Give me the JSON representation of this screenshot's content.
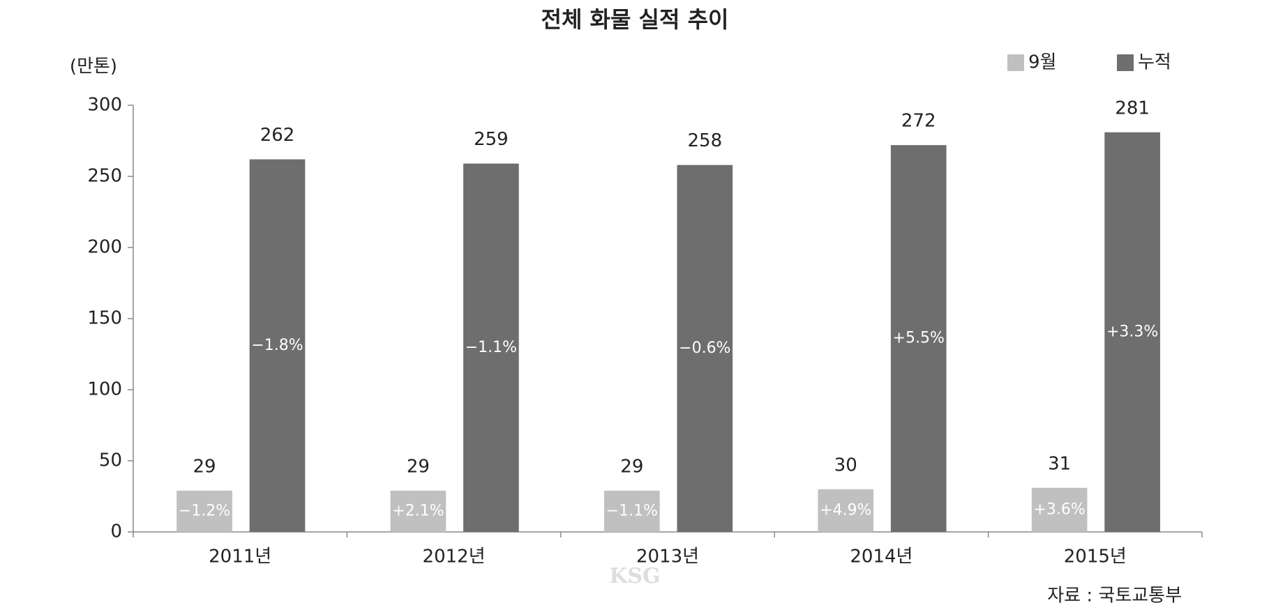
{
  "chart_data": {
    "type": "bar",
    "title": "전체 화물 실적 추이",
    "y_label": "(만톤)",
    "categories": [
      "2011년",
      "2012년",
      "2013년",
      "2014년",
      "2015년"
    ],
    "series": [
      {
        "name": "9월",
        "color": "#c0c0c0",
        "values": [
          29,
          29,
          29,
          30,
          31
        ],
        "growth_labels": [
          "−1.2%",
          "+2.1%",
          "−1.1%",
          "+4.9%",
          "+3.6%"
        ]
      },
      {
        "name": "누적",
        "color": "#6e6e6e",
        "values": [
          262,
          259,
          258,
          272,
          281
        ],
        "growth_labels": [
          "−1.8%",
          "−1.1%",
          "−0.6%",
          "+5.5%",
          "+3.3%"
        ]
      }
    ],
    "ylim": [
      0,
      300
    ],
    "yticks": [
      0,
      50,
      100,
      150,
      200,
      250,
      300
    ],
    "grid": false,
    "legend": "top-right",
    "source": "자료 : 국토교통부",
    "watermark": "KSG"
  }
}
